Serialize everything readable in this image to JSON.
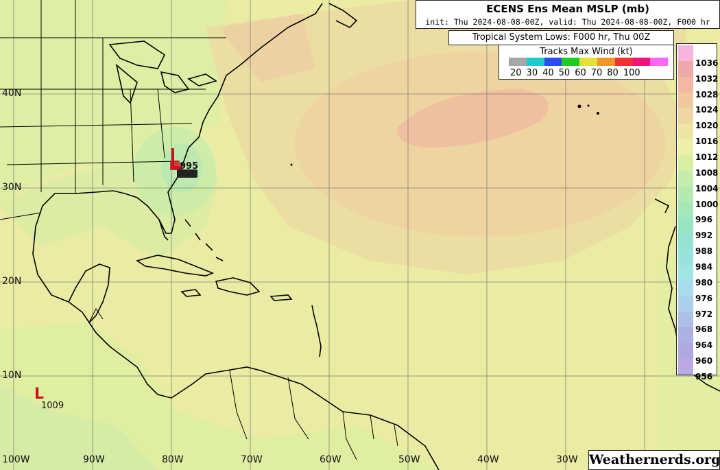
{
  "title": "ECENS Ens Mean MSLP (mb)",
  "subtitle": "init: Thu 2024-08-08-00Z, valid: Thu 2024-08-08-00Z, F000 hr",
  "lows_header": "Tropical System Lows: F000 hr, Thu 00Z",
  "wind_legend": {
    "title": "Tracks Max Wind (kt)",
    "colors": [
      "#a6a6a6",
      "#1ecbd0",
      "#2a4cf0",
      "#1ecc1e",
      "#e5e034",
      "#f0962a",
      "#f03232",
      "#f0147a",
      "#ff64ff"
    ],
    "labels": [
      "20",
      "30",
      "40",
      "50",
      "60",
      "70",
      "80",
      "100"
    ]
  },
  "pressure_scale": {
    "levels": [
      "1036",
      "1032",
      "1028",
      "1024",
      "1020",
      "1016",
      "1012",
      "1008",
      "1004",
      "1000",
      "996",
      "992",
      "988",
      "984",
      "980",
      "976",
      "972",
      "968",
      "964",
      "960",
      "956"
    ],
    "colors": [
      "#f7b4dc",
      "#f0a8a8",
      "#f2b8a4",
      "#f0c8a0",
      "#eed6a2",
      "#eee4a4",
      "#eef0a8",
      "#d8f0a4",
      "#c4ecaa",
      "#b4eab0",
      "#a4e8b8",
      "#98e4c4",
      "#94e2d0",
      "#98e4dc",
      "#a0e4e4",
      "#a8dcec",
      "#acd0ec",
      "#acc0e8",
      "#acb0e4",
      "#b0a8e0",
      "#bca8e4"
    ]
  },
  "lat_labels": [
    "40N",
    "30N",
    "20N",
    "10N"
  ],
  "lon_labels": [
    "100W",
    "90W",
    "80W",
    "70W",
    "60W",
    "50W",
    "40W",
    "30W"
  ],
  "lows": [
    {
      "symbol": "L",
      "value": "1009"
    },
    {
      "symbol": "L",
      "value": "995"
    }
  ],
  "credit": "Weathernerds.org"
}
